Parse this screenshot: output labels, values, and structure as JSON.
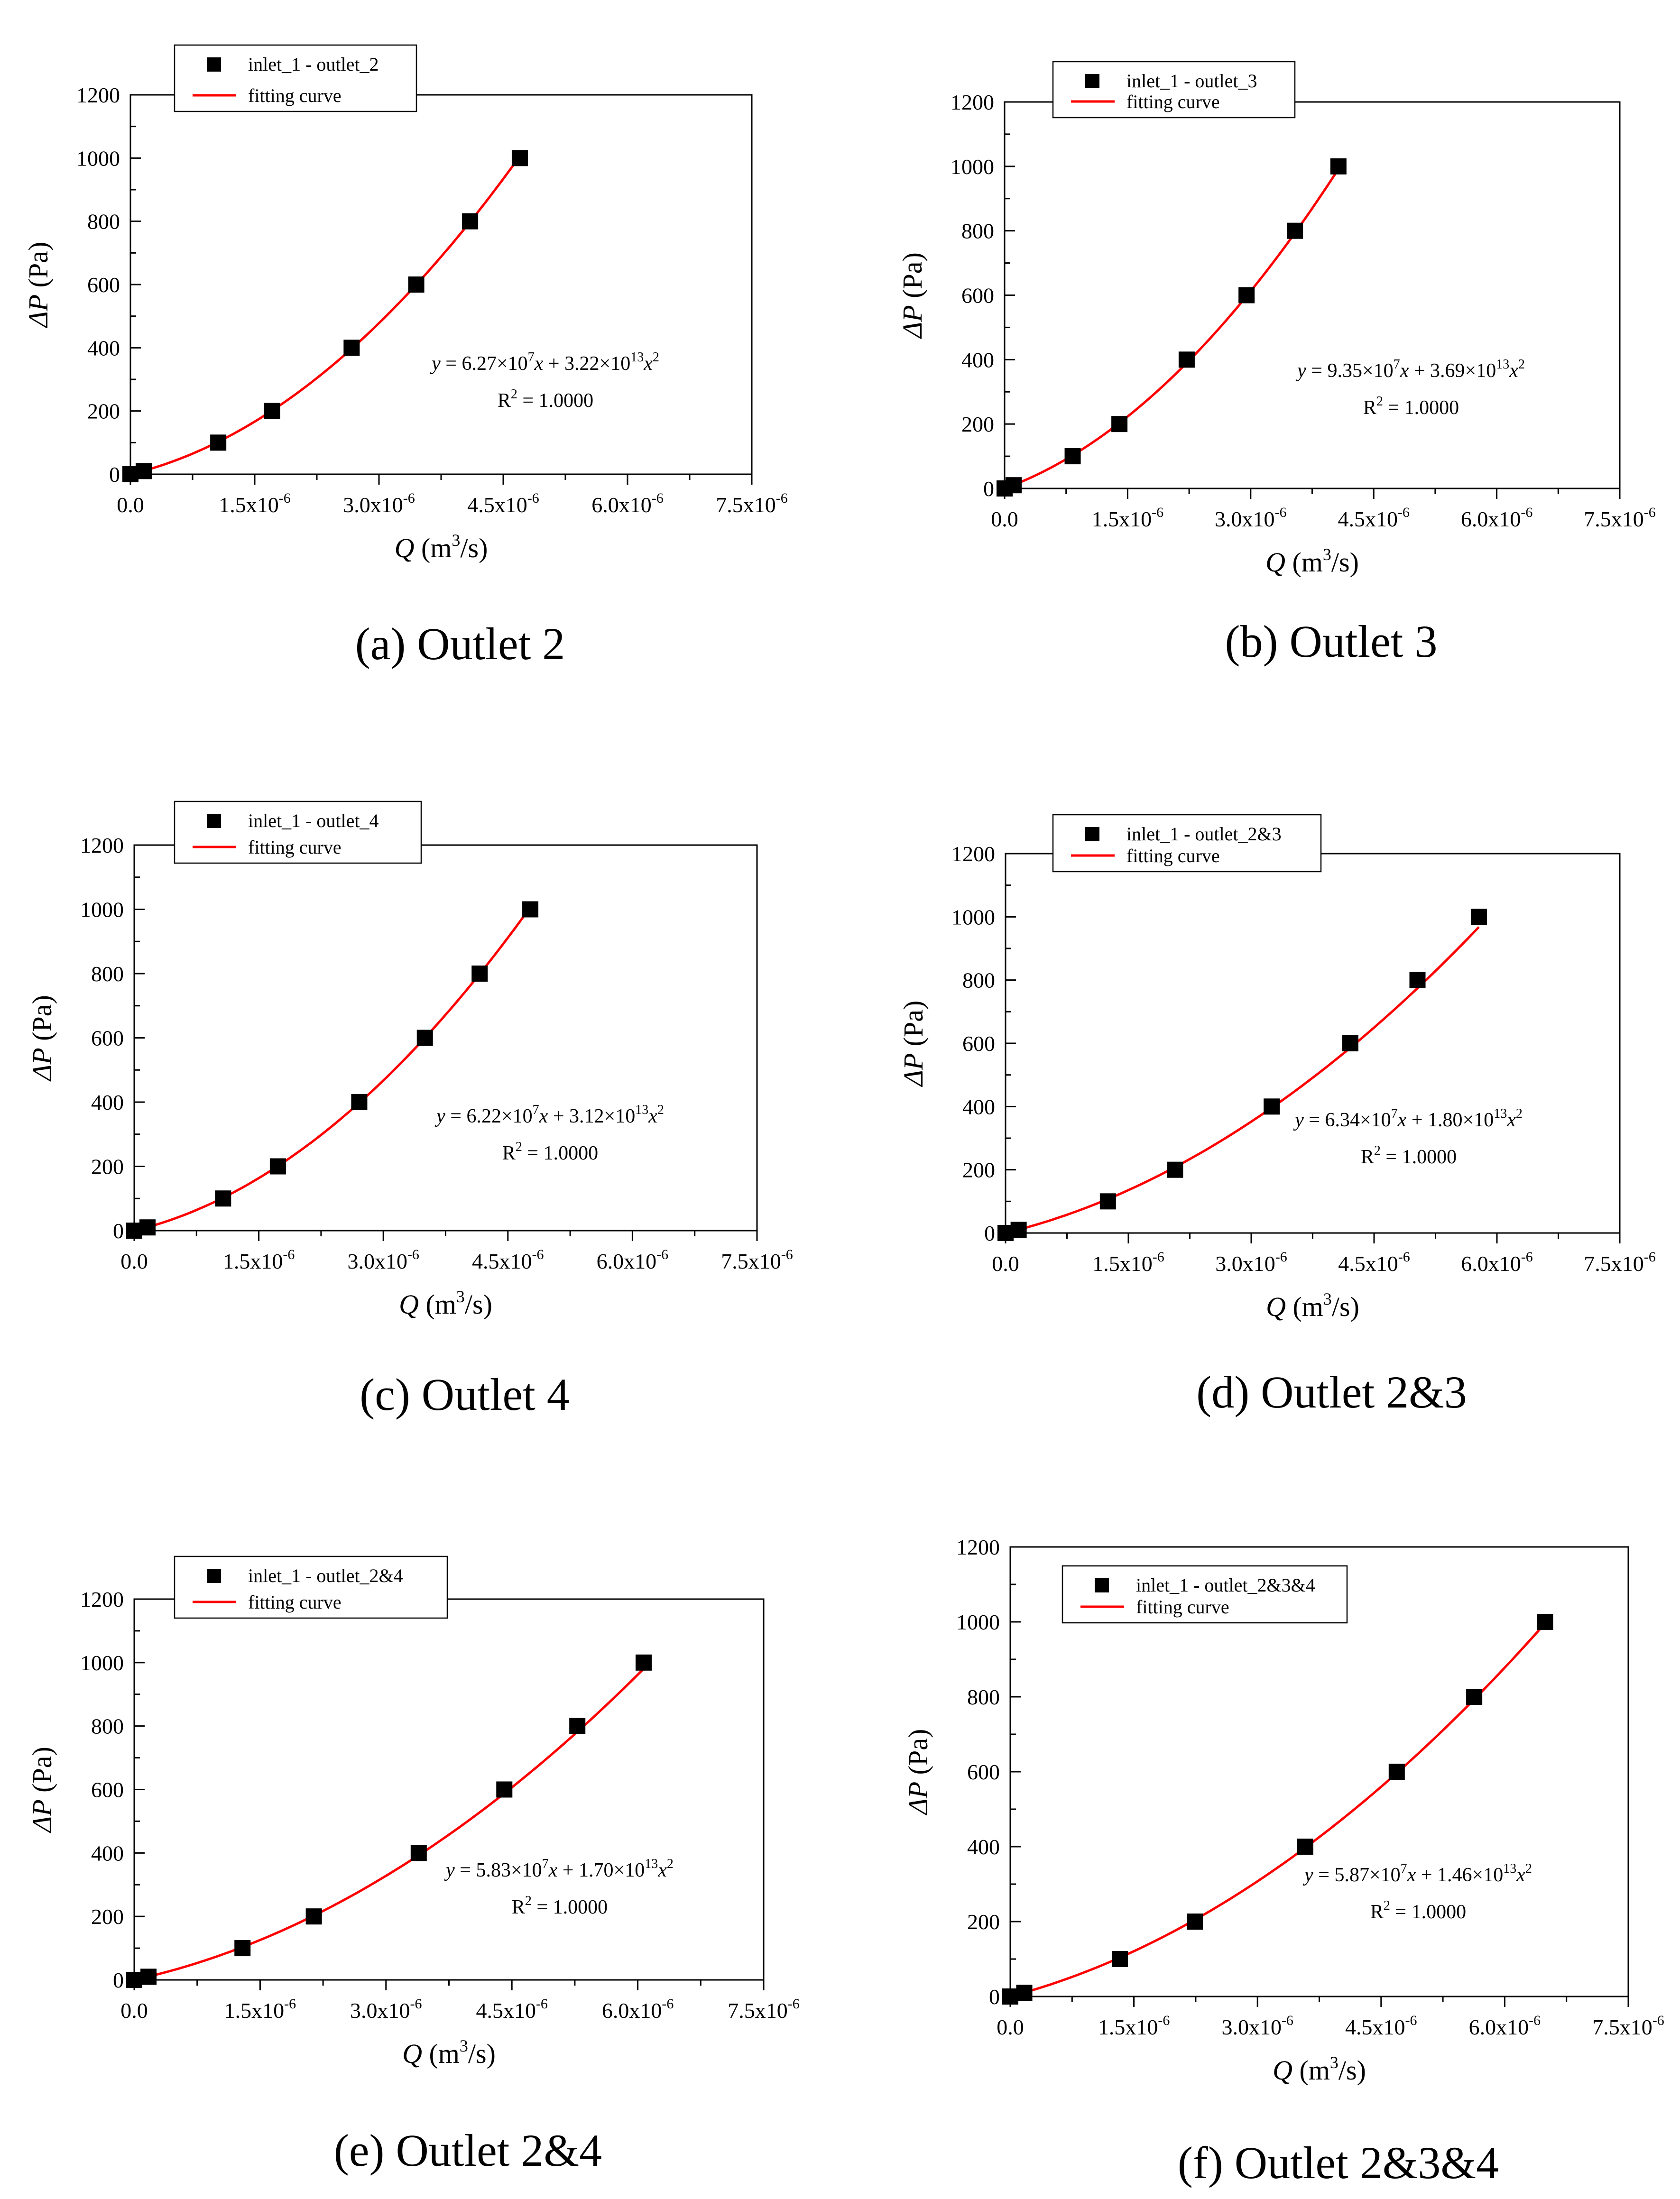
{
  "figure": {
    "fit_label_prefix": "y = ",
    "r2_label": "R",
    "r2_value": " = 1.0000",
    "legend_fit_label": "fitting curve"
  },
  "chart_data": [
    {
      "type": "scatter",
      "caption": "(a) Outlet 2",
      "legend": "inlet_1 - outlet_2",
      "xlabel": "Q (m³/s)",
      "ylabel": "ΔP (Pa)",
      "xlim": [
        0,
        7.5e-06
      ],
      "ylim": [
        0,
        1200
      ],
      "xticks": [
        "0.0",
        "1.5x10",
        "3.0x10",
        "4.5x10",
        "6.0x10",
        "7.5x10"
      ],
      "yticks": [
        "0",
        "200",
        "400",
        "600",
        "800",
        "1000",
        "1200"
      ],
      "x": [
        0,
        1.6e-07,
        1.06e-06,
        1.71e-06,
        2.67e-06,
        3.45e-06,
        4.1e-06,
        4.7e-06
      ],
      "y": [
        0,
        10,
        100,
        200,
        400,
        600,
        800,
        1000
      ],
      "fit": {
        "a": 62700000.0,
        "b": 32200000000000.0,
        "a_text": "6.27",
        "b_text": "3.22",
        "r2": "1.0000"
      }
    },
    {
      "type": "scatter",
      "caption": "(b) Outlet 3",
      "legend": "inlet_1 - outlet_3",
      "xlabel": "Q (m³/s)",
      "ylabel": "ΔP (Pa)",
      "xlim": [
        0,
        7.5e-06
      ],
      "ylim": [
        0,
        1200
      ],
      "xticks": [
        "0.0",
        "1.5x10",
        "3.0x10",
        "4.5x10",
        "6.0x10",
        "7.5x10"
      ],
      "yticks": [
        "0",
        "200",
        "400",
        "600",
        "800",
        "1000",
        "1200"
      ],
      "x": [
        0,
        1.1e-07,
        8.3e-07,
        1.4e-06,
        2.22e-06,
        2.95e-06,
        3.54e-06,
        4.07e-06
      ],
      "y": [
        0,
        10,
        100,
        200,
        400,
        600,
        800,
        1000
      ],
      "fit": {
        "a": 93500000.0,
        "b": 36900000000000.0,
        "a_text": "9.35",
        "b_text": "3.69",
        "r2": "1.0000"
      }
    },
    {
      "type": "scatter",
      "caption": "(c) Outlet 4",
      "legend": "inlet_1 - outlet_4",
      "xlabel": "Q (m³/s)",
      "ylabel": "ΔP (Pa)",
      "xlim": [
        0,
        7.5e-06
      ],
      "ylim": [
        0,
        1200
      ],
      "xticks": [
        "0.0",
        "1.5x10",
        "3.0x10",
        "4.5x10",
        "6.0x10",
        "7.5x10"
      ],
      "yticks": [
        "0",
        "200",
        "400",
        "600",
        "800",
        "1000",
        "1200"
      ],
      "x": [
        0,
        1.6e-07,
        1.07e-06,
        1.73e-06,
        2.71e-06,
        3.5e-06,
        4.16e-06,
        4.77e-06
      ],
      "y": [
        0,
        10,
        100,
        200,
        400,
        600,
        800,
        1000
      ],
      "fit": {
        "a": 62200000.0,
        "b": 31200000000000.0,
        "a_text": "6.22",
        "b_text": "3.12",
        "r2": "1.0000"
      }
    },
    {
      "type": "scatter",
      "caption": "(d) Outlet 2&3",
      "legend": "inlet_1 - outlet_2&3",
      "xlabel": "Q (m³/s)",
      "ylabel": "ΔP (Pa)",
      "xlim": [
        0,
        7.5e-06
      ],
      "ylim": [
        0,
        1200
      ],
      "xticks": [
        "0.0",
        "1.5x10",
        "3.0x10",
        "4.5x10",
        "6.0x10",
        "7.5x10"
      ],
      "yticks": [
        "0",
        "200",
        "400",
        "600",
        "800",
        "1000",
        "1200"
      ],
      "x": [
        0,
        1.6e-07,
        1.25e-06,
        2.07e-06,
        3.25e-06,
        4.21e-06,
        5.03e-06,
        5.78e-06
      ],
      "y": [
        0,
        10,
        100,
        200,
        400,
        600,
        800,
        1000
      ],
      "fit": {
        "a": 63400000.0,
        "b": 18000000000000.0,
        "a_text": "6.34",
        "b_text": "1.80",
        "r2": "1.0000"
      }
    },
    {
      "type": "scatter",
      "caption": "(e) Outlet 2&4",
      "legend": "inlet_1 - outlet_2&4",
      "xlabel": "Q (m³/s)",
      "ylabel": "ΔP (Pa)",
      "xlim": [
        0,
        7.5e-06
      ],
      "ylim": [
        0,
        1200
      ],
      "xticks": [
        "0.0",
        "1.5x10",
        "3.0x10",
        "4.5x10",
        "6.0x10",
        "7.5x10"
      ],
      "yticks": [
        "0",
        "200",
        "400",
        "600",
        "800",
        "1000",
        "1200"
      ],
      "x": [
        0,
        1.7e-07,
        1.29e-06,
        2.14e-06,
        3.39e-06,
        4.41e-06,
        5.28e-06,
        6.07e-06
      ],
      "y": [
        0,
        10,
        100,
        200,
        400,
        600,
        800,
        1000
      ],
      "fit": {
        "a": 58300000.0,
        "b": 17000000000000.0,
        "a_text": "5.83",
        "b_text": "1.70",
        "r2": "1.0000"
      }
    },
    {
      "type": "scatter",
      "caption": "(f) Outlet 2&3&4",
      "legend": "inlet_1 - outlet_2&3&4",
      "xlabel": "Q (m³/s)",
      "ylabel": "ΔP (Pa)",
      "xlim": [
        0,
        7.5e-06
      ],
      "ylim": [
        0,
        1200
      ],
      "xticks": [
        "0.0",
        "1.5x10",
        "3.0x10",
        "4.5x10",
        "6.0x10",
        "7.5x10"
      ],
      "yticks": [
        "0",
        "200",
        "400",
        "600",
        "800",
        "1000",
        "1200"
      ],
      "x": [
        0,
        1.7e-07,
        1.33e-06,
        2.24e-06,
        3.58e-06,
        4.69e-06,
        5.63e-06,
        6.49e-06
      ],
      "y": [
        0,
        10,
        100,
        200,
        400,
        600,
        800,
        1000
      ],
      "fit": {
        "a": 58700000.0,
        "b": 14600000000000.0,
        "a_text": "5.87",
        "b_text": "1.46",
        "r2": "1.0000"
      }
    }
  ]
}
